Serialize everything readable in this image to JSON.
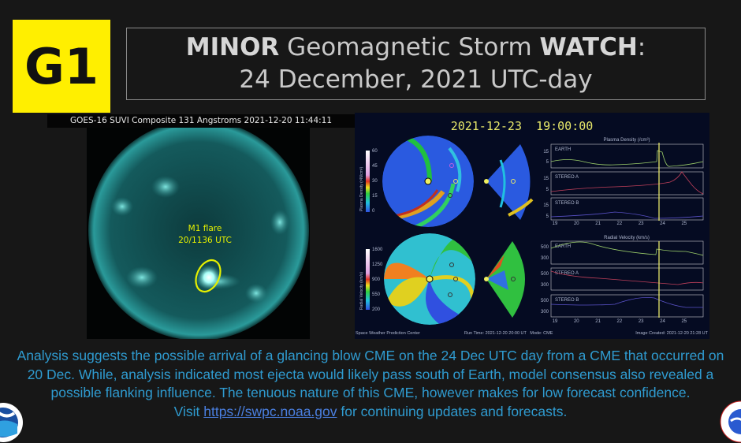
{
  "badge": "G1",
  "title": {
    "line1_strong1": "MINOR",
    "line1_mid": " Geomagnetic Storm ",
    "line1_strong2": "WATCH",
    "line1_end": ":",
    "line2": "24 December, 2021 UTC-day"
  },
  "sun_panel": {
    "caption": "GOES-16 SUVI Composite 131 Angstroms 2021-12-20 11:44:11",
    "annotation_line1": "M1 flare",
    "annotation_line2": "20/1136 UTC"
  },
  "enlil_panel": {
    "timestamp": "2021-12-23  19:00:00",
    "density_colorbar_label": "Plasma Density (r²N/cm³)",
    "density_ticks": [
      "60",
      "45",
      "30",
      "15",
      "0"
    ],
    "velocity_colorbar_label": "Radial Velocity (km/s)",
    "velocity_ticks": [
      "1600",
      "1250",
      "900",
      "550",
      "200"
    ],
    "density_plot_title": "Plasma Density (/cm³)",
    "velocity_plot_title": "Radial Velocity (km/s)",
    "density_yticks": [
      "15",
      "5"
    ],
    "velocity_yticks": [
      "500",
      "300"
    ],
    "series_labels": [
      "EARTH",
      "STEREO A",
      "STEREO B"
    ],
    "x_ticks": [
      "19",
      "20",
      "21",
      "22",
      "23",
      "24",
      "25"
    ],
    "footer_left": "Space Weather Prediction Center",
    "footer_mid": "Run Time: 2021-12-20 20:00 UT   Mode: CME",
    "footer_right": "Image Created: 2021-12-20 21:28 UT",
    "colors": {
      "earth": "#9ccf6a",
      "stereo_a": "#c0405a",
      "stereo_b": "#5a52c8",
      "marker": "#e8e86a"
    }
  },
  "body": {
    "line1": "Analysis suggests the possible arrival of a glancing blow CME on the 24 Dec UTC day from a CME that occurred on",
    "line2": "20 Dec. While, analysis indicated most ejecta would likely pass south of Earth, model consensus also revealed a",
    "line3": "possible flanking influence. The tenuous nature of this CME, however makes for low forecast confidence.",
    "visit": "Visit ",
    "link": "https://swpc.noaa.gov",
    "visit_end": " for continuing updates and forecasts."
  },
  "logos": {
    "left": "NOAA",
    "right": "NATIONAL WEATHER SERVICE"
  }
}
